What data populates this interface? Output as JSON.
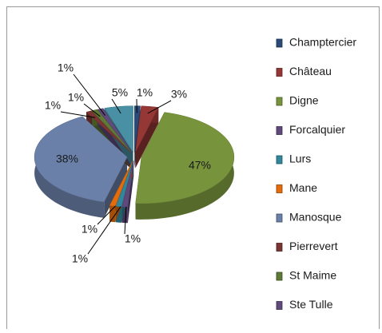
{
  "chart_data": {
    "type": "pie",
    "categories": [
      "Champtercier",
      "Château",
      "Digne",
      "Forcalquier",
      "Lurs",
      "Mane",
      "Manosque",
      "Pierrevert",
      "St Maime",
      "Ste Tulle",
      null
    ],
    "values": [
      1,
      3,
      47,
      1,
      1,
      1,
      38,
      1,
      1,
      1,
      5
    ],
    "value_labels": [
      "1%",
      "3%",
      "47%",
      "1%",
      "1%",
      "1%",
      "38%",
      "1%",
      "1%",
      "1%",
      "5%"
    ],
    "colors": [
      "#2b4a78",
      "#953735",
      "#77933c",
      "#5f497a",
      "#31859c",
      "#e46c0a",
      "#6a80a8",
      "#7a3532",
      "#5e7a34",
      "#604a7b",
      "#4a90a4"
    ],
    "legend": "right"
  }
}
